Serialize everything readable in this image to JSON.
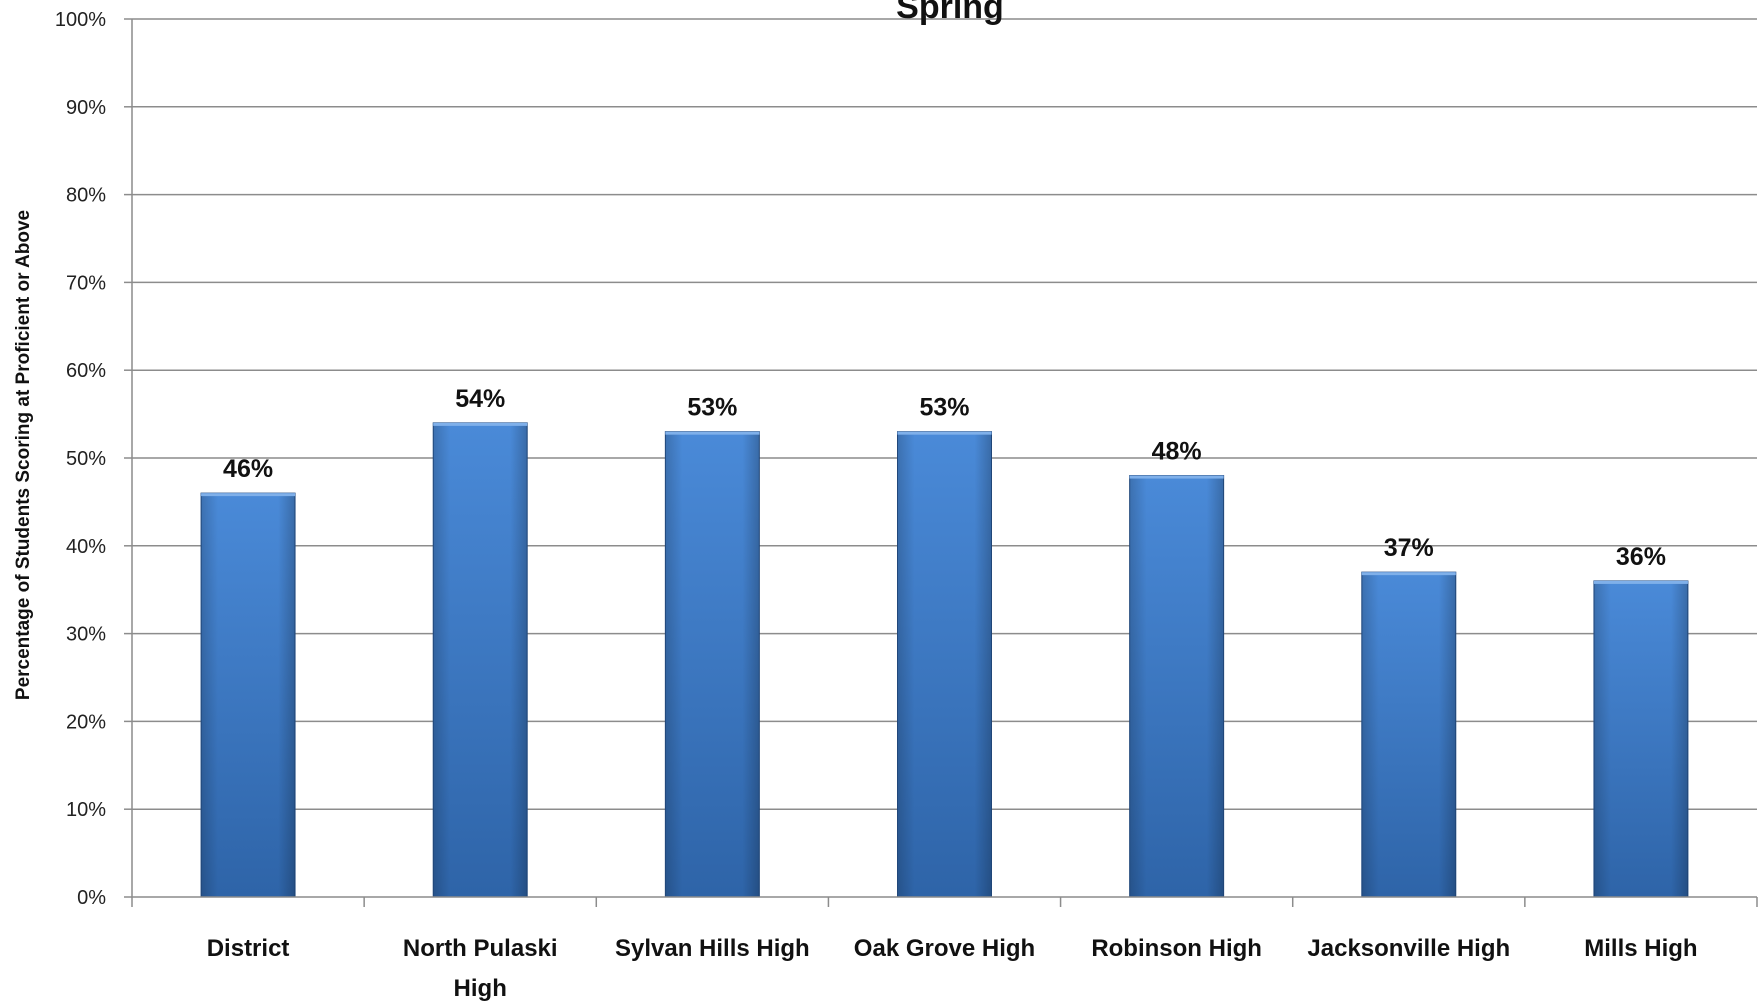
{
  "chart_data": {
    "type": "bar",
    "title": "Spring",
    "xlabel": "",
    "ylabel": "Percentage of Students Scoring at Proficient or Above",
    "categories": [
      "District",
      "North Pulaski High",
      "Sylvan Hills High",
      "Oak Grove High",
      "Robinson High",
      "Jacksonville High",
      "Mills High"
    ],
    "category_lines": [
      [
        "District"
      ],
      [
        "North Pulaski",
        "High"
      ],
      [
        "Sylvan Hills High"
      ],
      [
        "Oak Grove High"
      ],
      [
        "Robinson High"
      ],
      [
        "Jacksonville High"
      ],
      [
        "Mills High"
      ]
    ],
    "values": [
      46,
      54,
      53,
      53,
      48,
      37,
      36
    ],
    "data_labels": [
      "46%",
      "54%",
      "53%",
      "53%",
      "48%",
      "37%",
      "36%"
    ],
    "ylim": [
      0,
      100
    ],
    "yticks": [
      0,
      10,
      20,
      30,
      40,
      50,
      60,
      70,
      80,
      90,
      100
    ],
    "ytick_labels": [
      "0%",
      "10%",
      "20%",
      "30%",
      "40%",
      "50%",
      "60%",
      "70%",
      "80%",
      "90%",
      "100%"
    ],
    "grid": true,
    "legend": "none",
    "colors": {
      "bar_light": "#4A8AD8",
      "bar_dark": "#2E64A8",
      "bar_edge": "#244E86",
      "grid": "#8C8C8C",
      "axis": "#8C8C8C"
    }
  }
}
